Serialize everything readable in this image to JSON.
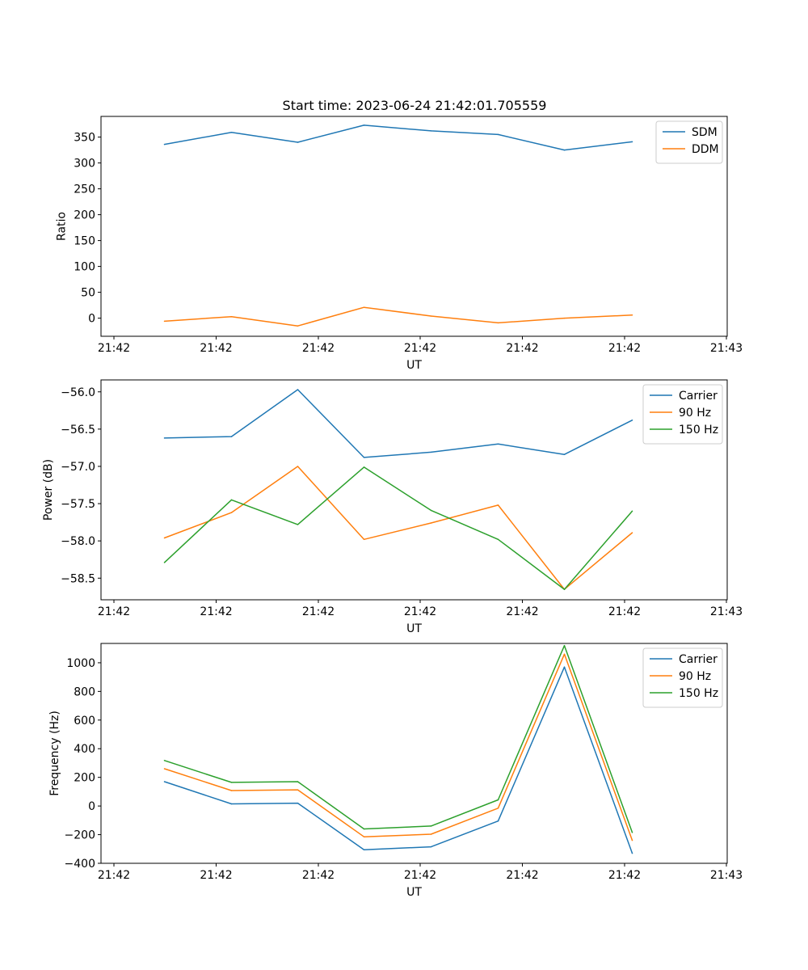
{
  "title": "Start time: 2023-06-24 21:42:01.705559",
  "colors": {
    "blue": "#1f77b4",
    "orange": "#ff7f0e",
    "green": "#2ca02c"
  },
  "chart_data": [
    {
      "type": "line",
      "xlabel": "UT",
      "ylabel": "Ratio",
      "x_tick_labels": [
        "21:42",
        "21:42",
        "21:42",
        "21:42",
        "21:42",
        "21:42",
        "21:43"
      ],
      "ylim": [
        -35,
        390
      ],
      "y_ticks": [
        0,
        50,
        100,
        150,
        200,
        250,
        300,
        350
      ],
      "legend_position": "top-right",
      "series": [
        {
          "name": "SDM",
          "color": "#1f77b4",
          "values": [
            336,
            359,
            340,
            373,
            362,
            355,
            325,
            341
          ]
        },
        {
          "name": "DDM",
          "color": "#ff7f0e",
          "values": [
            -6,
            3,
            -15,
            21,
            4,
            -9,
            0,
            6
          ]
        }
      ]
    },
    {
      "type": "line",
      "xlabel": "UT",
      "ylabel": "Power (dB)",
      "x_tick_labels": [
        "21:42",
        "21:42",
        "21:42",
        "21:42",
        "21:42",
        "21:42",
        "21:43"
      ],
      "ylim": [
        -58.79,
        -55.84
      ],
      "y_ticks": [
        -58.5,
        -58.0,
        -57.5,
        -57.0,
        -56.5,
        -56.0
      ],
      "y_tick_labels": [
        "−58.5",
        "−58.0",
        "−57.5",
        "−57.0",
        "−56.5",
        "−56.0"
      ],
      "legend_position": "top-right",
      "series": [
        {
          "name": "Carrier",
          "color": "#1f77b4",
          "values": [
            -56.62,
            -56.6,
            -55.97,
            -56.88,
            -56.81,
            -56.7,
            -56.84,
            -56.38
          ]
        },
        {
          "name": "90 Hz",
          "color": "#ff7f0e",
          "values": [
            -57.96,
            -57.62,
            -57.0,
            -57.98,
            -57.76,
            -57.52,
            -58.65,
            -57.89
          ]
        },
        {
          "name": "150 Hz",
          "color": "#2ca02c",
          "values": [
            -58.29,
            -57.45,
            -57.78,
            -57.01,
            -57.59,
            -57.98,
            -58.65,
            -57.6
          ]
        }
      ]
    },
    {
      "type": "line",
      "xlabel": "UT",
      "ylabel": "Frequency (Hz)",
      "x_tick_labels": [
        "21:42",
        "21:42",
        "21:42",
        "21:42",
        "21:42",
        "21:42",
        "21:43"
      ],
      "ylim": [
        -400,
        1135
      ],
      "y_ticks": [
        -400,
        -200,
        0,
        200,
        400,
        600,
        800,
        1000
      ],
      "y_tick_labels": [
        "−400",
        "−200",
        "0",
        "200",
        "400",
        "600",
        "800",
        "1000"
      ],
      "legend_position": "top-right",
      "series": [
        {
          "name": "Carrier",
          "color": "#1f77b4",
          "values": [
            170,
            15,
            20,
            -305,
            -285,
            -105,
            970,
            -330
          ]
        },
        {
          "name": "90 Hz",
          "color": "#ff7f0e",
          "values": [
            260,
            108,
            113,
            -215,
            -197,
            -15,
            1060,
            -240
          ]
        },
        {
          "name": "150 Hz",
          "color": "#2ca02c",
          "values": [
            318,
            165,
            170,
            -160,
            -140,
            43,
            1120,
            -185
          ]
        }
      ]
    }
  ]
}
